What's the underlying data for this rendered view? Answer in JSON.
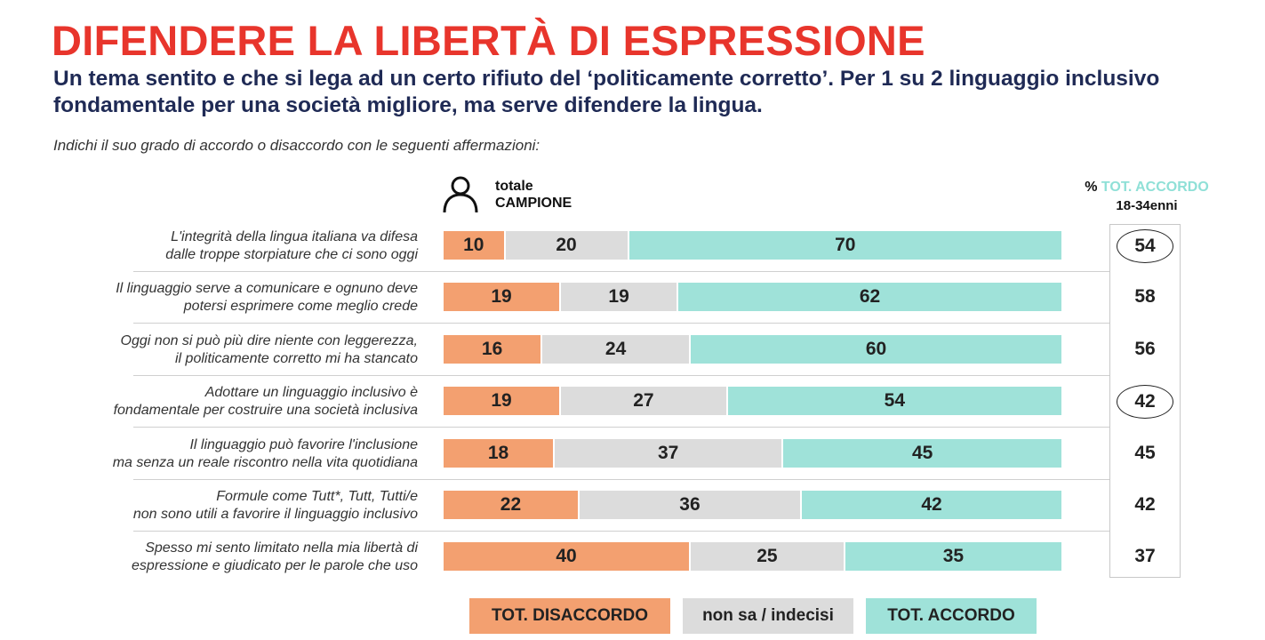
{
  "header": {
    "title": "DIFENDERE LA LIBERTÀ DI ESPRESSIONE",
    "subtitle": "Un tema sentito e che si lega ad un certo rifiuto del ‘politicamente corretto’. Per 1 su 2 linguaggio inclusivo fondamentale per una società migliore, ma serve difendere la lingua.",
    "question": "Indichi il suo grado di accordo o disaccordo con le seguenti affermazioni:"
  },
  "sample": {
    "line1": "totale",
    "line2": "CAMPIONE",
    "icon": "person-icon"
  },
  "right_column": {
    "pct_prefix": "% ",
    "accordo_label": "TOT. ACCORDO",
    "age_label": "18-34enni"
  },
  "colors": {
    "disaccordo": "#f3a070",
    "indecisi": "#dcdcdc",
    "accordo": "#9fe2d9",
    "title": "#e8352c",
    "subtitle": "#1f2a55"
  },
  "chart_data": {
    "type": "bar",
    "stacked": true,
    "orientation": "horizontal",
    "categories": [
      "L'integrità della lingua italiana va difesa dalle troppe storpiature che ci sono oggi",
      "Il linguaggio serve a comunicare e ognuno deve potersi esprimere come meglio crede",
      "Oggi non si può più dire niente con leggerezza, il politicamente corretto mi ha stancato",
      "Adottare un linguaggio inclusivo è fondamentale per costruire una società inclusiva",
      "Il linguaggio può favorire l'inclusione ma senza un reale riscontro nella vita quotidiana",
      "Formule come Tutt*, Tutt, Tutti/e non sono utili a favorire il linguaggio inclusivo",
      "Spesso mi sento limitato nella mia libertà di espressione e giudicato per le parole che uso"
    ],
    "label_lines": [
      [
        "L'integrità della lingua italiana va difesa",
        "dalle troppe storpiature che ci sono oggi"
      ],
      [
        "Il linguaggio serve a comunicare e ognuno deve",
        "potersi esprimere come meglio crede"
      ],
      [
        "Oggi non si può più dire niente con leggerezza,",
        "il politicamente corretto mi ha stancato"
      ],
      [
        "Adottare un linguaggio inclusivo è",
        "fondamentale per costruire una società inclusiva"
      ],
      [
        "Il linguaggio può favorire l'inclusione",
        "ma senza un reale riscontro nella vita quotidiana"
      ],
      [
        "Formule come Tutt*, Tutt, Tutti/e",
        "non sono utili a favorire il linguaggio inclusivo"
      ],
      [
        "Spesso mi sento limitato nella mia libertà di",
        "espressione e giudicato per le parole che uso"
      ]
    ],
    "series": [
      {
        "name": "TOT. DISACCORDO",
        "values": [
          10,
          19,
          16,
          19,
          18,
          22,
          40
        ]
      },
      {
        "name": "non sa / indecisi",
        "values": [
          20,
          19,
          24,
          27,
          37,
          36,
          25
        ]
      },
      {
        "name": "TOT. ACCORDO",
        "values": [
          70,
          62,
          60,
          54,
          45,
          42,
          35
        ]
      }
    ],
    "accordo_18_34": [
      54,
      58,
      56,
      42,
      45,
      42,
      37
    ],
    "circled_18_34": [
      true,
      false,
      false,
      true,
      false,
      false,
      false
    ],
    "xlim": [
      0,
      100
    ],
    "legend": "bottom"
  }
}
